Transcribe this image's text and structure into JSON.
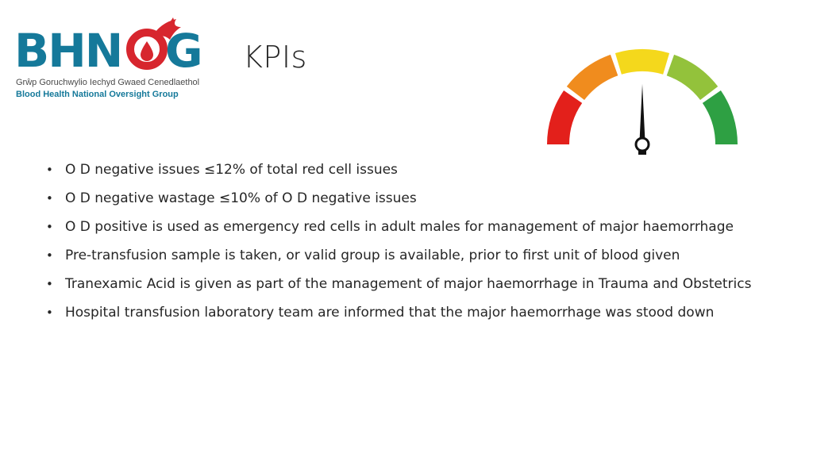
{
  "logo": {
    "wordmark": "BHNOG",
    "welsh_name": "Grŵp Goruchwylio Iechyd Gwaed Cenedlaethol",
    "english_name": "Blood Health National Oversight Group",
    "colors": {
      "teal": "#15799a",
      "red": "#d7262e"
    }
  },
  "title": "KPIs",
  "gauge": {
    "icon": "speedometer-gauge-icon",
    "segment_colors": [
      "#e3201b",
      "#f08c1e",
      "#f4d81c",
      "#93c23b",
      "#2ea043"
    ]
  },
  "bullets": [
    "O D negative issues ≤12% of total red cell issues",
    "O D negative wastage ≤10% of O D negative issues",
    "O D positive is used as emergency red cells in adult males for management of major haemorrhage",
    "Pre-transfusion sample is taken, or valid group is available, prior to first unit of blood given",
    "Tranexamic Acid is given as part of the management of major haemorrhage in Trauma and Obstetrics",
    "Hospital transfusion laboratory team are informed that the major haemorrhage was stood down"
  ],
  "bullet_glyph": "•"
}
